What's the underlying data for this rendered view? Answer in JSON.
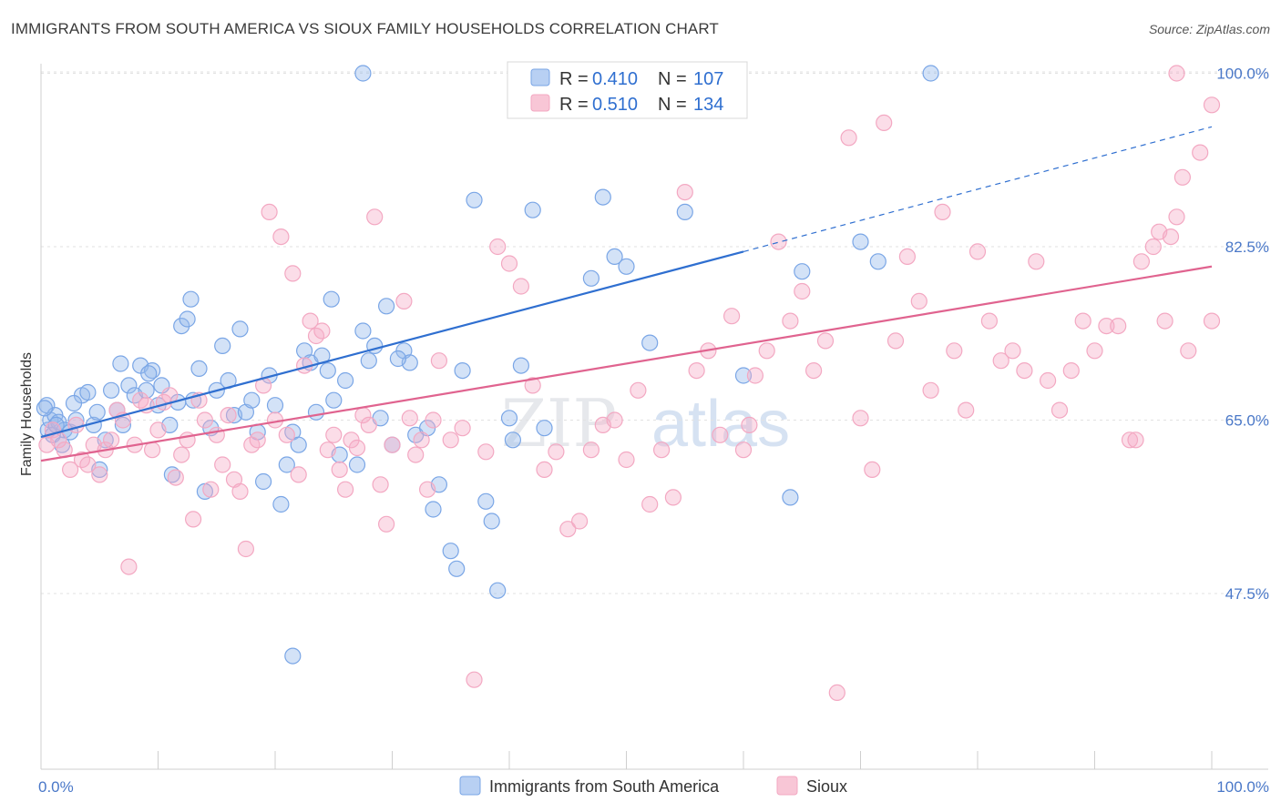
{
  "header": {
    "title": "IMMIGRANTS FROM SOUTH AMERICA VS SIOUX FAMILY HOUSEHOLDS CORRELATION CHART",
    "source": "Source: ZipAtlas.com"
  },
  "watermark": {
    "part1": "ZIP",
    "part2": "atlas"
  },
  "chart_data": {
    "type": "scatter",
    "title": "IMMIGRANTS FROM SOUTH AMERICA VS SIOUX FAMILY HOUSEHOLDS CORRELATION CHART",
    "ylabel": "Family Households",
    "xlabel": "",
    "xlim": [
      0,
      100
    ],
    "ylim": [
      34,
      102
    ],
    "x_tick_labels": {
      "min": "0.0%",
      "max": "100.0%"
    },
    "y_ticks": [
      {
        "value": 100,
        "label": "100.0%"
      },
      {
        "value": 82.5,
        "label": "82.5%"
      },
      {
        "value": 65,
        "label": "65.0%"
      },
      {
        "value": 47.5,
        "label": "47.5%"
      }
    ],
    "grid": true,
    "legend_position": "bottom",
    "stats": [
      {
        "r_label": "R = ",
        "r_value": "0.410",
        "n_label": "N = ",
        "n_value": "107"
      },
      {
        "r_label": "R = ",
        "r_value": "0.510",
        "n_label": "N = ",
        "n_value": "134"
      }
    ],
    "series": [
      {
        "name": "Immigrants from South America",
        "color": "#7aa6e6",
        "line_color": "#2f6fd0",
        "trend": {
          "x0": 0,
          "y0": 63.3,
          "x1": 60,
          "y1": 82.0,
          "dash_to_x": 100,
          "dash_to_y": 94.6
        },
        "points": [
          [
            0.5,
            66.5
          ],
          [
            0.6,
            64
          ],
          [
            0.8,
            65
          ],
          [
            1,
            63.5
          ],
          [
            1.2,
            65.5
          ],
          [
            1.5,
            64.8
          ],
          [
            1.8,
            62.5
          ],
          [
            2,
            64
          ],
          [
            2.5,
            63.8
          ],
          [
            3,
            65
          ],
          [
            3.5,
            67.5
          ],
          [
            4,
            67.8
          ],
          [
            4.5,
            64.5
          ],
          [
            5,
            60
          ],
          [
            5.5,
            63
          ],
          [
            6,
            68
          ],
          [
            6.5,
            66
          ],
          [
            7,
            64.5
          ],
          [
            7.5,
            68.5
          ],
          [
            8,
            67.5
          ],
          [
            8.5,
            70.5
          ],
          [
            9,
            68
          ],
          [
            9.5,
            70
          ],
          [
            10,
            66.5
          ],
          [
            10.3,
            68.5
          ],
          [
            11,
            64.5
          ],
          [
            11.2,
            59.5
          ],
          [
            12,
            74.5
          ],
          [
            12.5,
            75.2
          ],
          [
            12.8,
            77.2
          ],
          [
            13,
            67
          ],
          [
            13.5,
            70.2
          ],
          [
            14,
            57.8
          ],
          [
            14.5,
            64.2
          ],
          [
            15,
            68
          ],
          [
            15.5,
            72.5
          ],
          [
            16,
            69
          ],
          [
            16.5,
            65.5
          ],
          [
            17,
            74.2
          ],
          [
            17.5,
            65.8
          ],
          [
            18,
            67
          ],
          [
            18.5,
            63.8
          ],
          [
            19,
            58.8
          ],
          [
            19.5,
            69.5
          ],
          [
            20,
            66.5
          ],
          [
            20.5,
            56.5
          ],
          [
            21,
            60.5
          ],
          [
            21.5,
            63.8
          ],
          [
            22,
            62.5
          ],
          [
            22.5,
            72
          ],
          [
            23,
            70.8
          ],
          [
            23.5,
            65.8
          ],
          [
            24,
            71.5
          ],
          [
            24.5,
            70
          ],
          [
            24.8,
            77.2
          ],
          [
            25,
            67
          ],
          [
            25.5,
            61.5
          ],
          [
            26,
            69
          ],
          [
            27,
            60.5
          ],
          [
            27.5,
            74
          ],
          [
            28,
            71
          ],
          [
            28.5,
            72.5
          ],
          [
            29,
            65.2
          ],
          [
            29.5,
            76.5
          ],
          [
            30,
            62.5
          ],
          [
            31,
            72
          ],
          [
            31.5,
            70.8
          ],
          [
            32,
            63.5
          ],
          [
            33,
            64.2
          ],
          [
            33.5,
            56
          ],
          [
            34,
            58.5
          ],
          [
            35,
            51.8
          ],
          [
            35.5,
            50
          ],
          [
            36,
            70
          ],
          [
            37,
            87.2
          ],
          [
            38,
            56.8
          ],
          [
            38.5,
            54.8
          ],
          [
            39,
            47.8
          ],
          [
            40,
            65.2
          ],
          [
            40.3,
            63
          ],
          [
            41,
            70.5
          ],
          [
            42,
            86.2
          ],
          [
            43,
            64.2
          ],
          [
            44,
            96.8
          ],
          [
            47,
            79.3
          ],
          [
            48,
            87.5
          ],
          [
            49,
            81.5
          ],
          [
            50,
            80.5
          ],
          [
            52,
            72.8
          ],
          [
            55,
            86
          ],
          [
            60,
            69.5
          ],
          [
            64,
            57.2
          ],
          [
            65,
            80
          ],
          [
            70,
            83
          ],
          [
            71.5,
            81
          ],
          [
            76,
            100
          ],
          [
            27.5,
            100
          ],
          [
            0.3,
            66.2
          ],
          [
            21.5,
            41.2
          ],
          [
            1.3,
            64.5
          ],
          [
            2.8,
            66.7
          ],
          [
            4.8,
            65.8
          ],
          [
            6.8,
            70.7
          ],
          [
            9.2,
            69.7
          ],
          [
            11.7,
            66.8
          ],
          [
            30.5,
            71.2
          ]
        ]
      },
      {
        "name": "Sioux",
        "color": "#f3a8c2",
        "line_color": "#e0638f",
        "trend": {
          "x0": 0,
          "y0": 60.9,
          "x1": 100,
          "y1": 80.5
        },
        "points": [
          [
            0.5,
            62.5
          ],
          [
            1,
            64
          ],
          [
            1.5,
            63
          ],
          [
            2,
            62
          ],
          [
            2.5,
            60
          ],
          [
            3,
            64.5
          ],
          [
            3.5,
            61
          ],
          [
            4,
            60.5
          ],
          [
            4.5,
            62.5
          ],
          [
            5,
            59.5
          ],
          [
            5.5,
            62
          ],
          [
            6,
            63
          ],
          [
            6.5,
            66
          ],
          [
            7,
            65
          ],
          [
            7.5,
            50.2
          ],
          [
            8,
            62.5
          ],
          [
            8.5,
            67
          ],
          [
            9,
            66.5
          ],
          [
            9.5,
            62
          ],
          [
            10,
            64
          ],
          [
            10.5,
            66.8
          ],
          [
            11,
            67.5
          ],
          [
            11.5,
            59.2
          ],
          [
            12,
            61.5
          ],
          [
            12.5,
            63
          ],
          [
            13,
            55
          ],
          [
            13.5,
            67
          ],
          [
            14,
            65
          ],
          [
            14.5,
            58
          ],
          [
            15,
            63.5
          ],
          [
            15.5,
            60.5
          ],
          [
            16,
            65.5
          ],
          [
            16.5,
            59
          ],
          [
            17,
            57.8
          ],
          [
            17.5,
            52
          ],
          [
            18,
            62.5
          ],
          [
            18.5,
            63
          ],
          [
            19,
            68.5
          ],
          [
            19.5,
            86
          ],
          [
            20,
            65
          ],
          [
            20.5,
            83.5
          ],
          [
            21,
            63.5
          ],
          [
            21.5,
            79.8
          ],
          [
            22,
            59.5
          ],
          [
            22.5,
            70.5
          ],
          [
            23,
            75
          ],
          [
            23.5,
            73.5
          ],
          [
            24,
            74
          ],
          [
            24.5,
            62
          ],
          [
            25,
            63.5
          ],
          [
            25.5,
            60
          ],
          [
            26,
            58
          ],
          [
            26.5,
            63
          ],
          [
            27,
            62.2
          ],
          [
            27.5,
            65.5
          ],
          [
            28,
            64.5
          ],
          [
            28.5,
            85.5
          ],
          [
            29,
            58.5
          ],
          [
            29.5,
            54.5
          ],
          [
            30,
            62.5
          ],
          [
            31,
            77
          ],
          [
            31.5,
            65.2
          ],
          [
            32,
            61.5
          ],
          [
            32.5,
            63
          ],
          [
            33,
            58
          ],
          [
            33.5,
            65
          ],
          [
            34,
            71
          ],
          [
            35,
            63
          ],
          [
            36,
            64.2
          ],
          [
            37,
            38.8
          ],
          [
            38,
            61.8
          ],
          [
            39,
            82.5
          ],
          [
            40,
            80.8
          ],
          [
            41,
            78.5
          ],
          [
            42,
            68.5
          ],
          [
            43,
            60
          ],
          [
            44,
            61.8
          ],
          [
            45,
            54
          ],
          [
            46,
            54.8
          ],
          [
            47,
            62
          ],
          [
            48,
            64.5
          ],
          [
            49,
            65
          ],
          [
            50,
            61
          ],
          [
            51,
            68
          ],
          [
            52,
            56.5
          ],
          [
            53,
            62
          ],
          [
            54,
            57.2
          ],
          [
            55,
            88
          ],
          [
            56,
            70
          ],
          [
            57,
            72
          ],
          [
            58,
            63.5
          ],
          [
            59,
            75.5
          ],
          [
            60,
            62
          ],
          [
            60.5,
            64.5
          ],
          [
            61,
            69.5
          ],
          [
            62,
            72
          ],
          [
            63,
            83
          ],
          [
            64,
            75
          ],
          [
            65,
            78
          ],
          [
            66,
            70
          ],
          [
            67,
            73
          ],
          [
            68,
            37.5
          ],
          [
            69,
            93.5
          ],
          [
            70,
            65.2
          ],
          [
            71,
            60
          ],
          [
            72,
            95
          ],
          [
            73,
            73
          ],
          [
            74,
            81.5
          ],
          [
            75,
            77
          ],
          [
            76,
            68
          ],
          [
            77,
            86
          ],
          [
            78,
            72
          ],
          [
            79,
            66
          ],
          [
            80,
            82
          ],
          [
            81,
            75
          ],
          [
            82,
            71
          ],
          [
            83,
            72
          ],
          [
            84,
            70
          ],
          [
            85,
            81
          ],
          [
            86,
            69
          ],
          [
            87,
            66
          ],
          [
            88,
            70
          ],
          [
            89,
            75
          ],
          [
            90,
            72
          ],
          [
            91,
            74.5
          ],
          [
            92,
            74.5
          ],
          [
            93,
            63
          ],
          [
            94,
            81
          ],
          [
            95,
            82.5
          ],
          [
            96,
            75
          ],
          [
            97,
            85.5
          ],
          [
            98,
            72
          ],
          [
            99,
            92
          ],
          [
            100,
            75
          ],
          [
            97.5,
            89.5
          ],
          [
            97,
            100
          ],
          [
            100,
            96.8
          ],
          [
            93.5,
            63
          ],
          [
            95.5,
            84
          ],
          [
            96.5,
            83.5
          ]
        ]
      }
    ]
  }
}
